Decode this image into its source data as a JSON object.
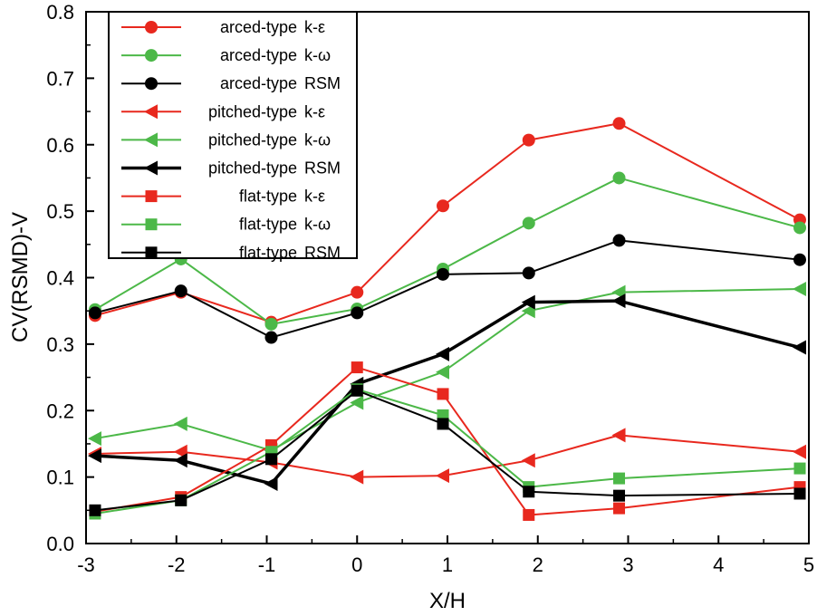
{
  "chart_data": {
    "type": "line",
    "title": "",
    "xlabel": "X/H",
    "ylabel": "CV(RSMD)-V",
    "xlim": [
      -3,
      5
    ],
    "ylim": [
      0.0,
      0.8
    ],
    "xticks": [
      -3,
      -2,
      -1,
      0,
      1,
      2,
      3,
      4,
      5
    ],
    "yticks": [
      0.0,
      0.1,
      0.2,
      0.3,
      0.4,
      0.5,
      0.6,
      0.7,
      0.8
    ],
    "xtick_labels": [
      "-3",
      "-2",
      "-1",
      "0",
      "1",
      "2",
      "3",
      "4",
      "5"
    ],
    "ytick_labels": [
      "0.0",
      "0.1",
      "0.2",
      "0.3",
      "0.4",
      "0.5",
      "0.6",
      "0.7",
      "0.8"
    ],
    "grid": false,
    "legend_position": "top-left",
    "x": [
      -2.9,
      -1.95,
      -0.95,
      0,
      0.95,
      1.9,
      2.9,
      4.9
    ],
    "series": [
      {
        "name": "arced-type k-ε",
        "type_label": "arced-type",
        "model_label": "k-ε",
        "color": "#e8281e",
        "marker": "circle",
        "width": 2,
        "values": [
          0.343,
          0.378,
          0.333,
          0.378,
          0.508,
          0.607,
          0.632,
          0.487
        ]
      },
      {
        "name": "arced-type k-ω",
        "type_label": "arced-type",
        "model_label": "k-ω",
        "color": "#4cb848",
        "marker": "circle",
        "width": 2,
        "values": [
          0.352,
          0.428,
          0.33,
          0.353,
          0.413,
          0.482,
          0.55,
          0.475
        ]
      },
      {
        "name": "arced-type RSM",
        "type_label": "arced-type",
        "model_label": "RSM",
        "color": "#000000",
        "marker": "circle",
        "width": 2,
        "values": [
          0.347,
          0.38,
          0.31,
          0.347,
          0.405,
          0.407,
          0.456,
          0.427
        ]
      },
      {
        "name": "pitched-type k-ε",
        "type_label": "pitched-type",
        "model_label": "k-ε",
        "color": "#e8281e",
        "marker": "triangle-left",
        "width": 2,
        "values": [
          0.135,
          0.138,
          0.122,
          0.1,
          0.102,
          0.125,
          0.163,
          0.138
        ]
      },
      {
        "name": "pitched-type k-ω",
        "type_label": "pitched-type",
        "model_label": "k-ω",
        "color": "#4cb848",
        "marker": "triangle-left",
        "width": 2,
        "values": [
          0.158,
          0.18,
          0.14,
          0.212,
          0.258,
          0.35,
          0.378,
          0.383
        ]
      },
      {
        "name": "pitched-type RSM",
        "type_label": "pitched-type",
        "model_label": "RSM",
        "color": "#000000",
        "marker": "triangle-left",
        "width": 3.5,
        "values": [
          0.132,
          0.125,
          0.09,
          0.24,
          0.285,
          0.363,
          0.365,
          0.295
        ]
      },
      {
        "name": "flat-type k-ε",
        "type_label": "flat-type",
        "model_label": "k-ε",
        "color": "#e8281e",
        "marker": "square",
        "width": 2,
        "values": [
          0.048,
          0.07,
          0.148,
          0.265,
          0.225,
          0.043,
          0.053,
          0.085
        ]
      },
      {
        "name": "flat-type k-ω",
        "type_label": "flat-type",
        "model_label": "k-ω",
        "color": "#4cb848",
        "marker": "square",
        "width": 2,
        "values": [
          0.045,
          0.065,
          0.138,
          0.232,
          0.193,
          0.085,
          0.098,
          0.113
        ]
      },
      {
        "name": "flat-type RSM",
        "type_label": "flat-type",
        "model_label": "RSM",
        "color": "#000000",
        "marker": "square",
        "width": 2,
        "values": [
          0.05,
          0.065,
          0.127,
          0.23,
          0.18,
          0.078,
          0.072,
          0.075
        ]
      }
    ]
  }
}
